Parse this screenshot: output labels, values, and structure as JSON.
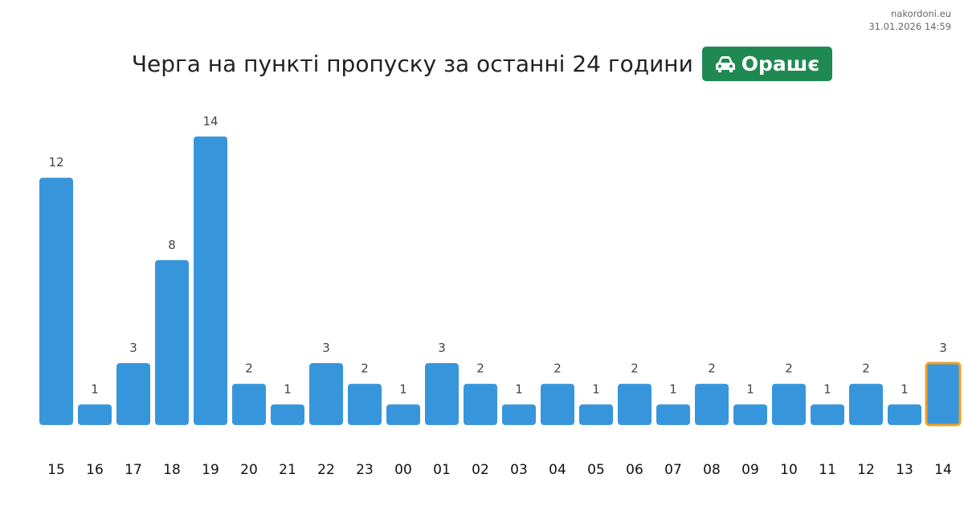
{
  "header": {
    "site": "nakordoni.eu",
    "timestamp": "31.01.2026 14:59"
  },
  "title": {
    "text": "Черга на пункті пропуску за останні 24 години",
    "badge_label": "Орашє",
    "badge_icon": "car-icon",
    "badge_color": "#1e8a52"
  },
  "colors": {
    "bar": "#3796db",
    "highlight_border": "#f0a020"
  },
  "chart_data": {
    "type": "bar",
    "title": "Черга на пункті пропуску за останні 24 години",
    "categories": [
      "15",
      "16",
      "17",
      "18",
      "19",
      "20",
      "21",
      "22",
      "23",
      "00",
      "01",
      "02",
      "03",
      "04",
      "05",
      "06",
      "07",
      "08",
      "09",
      "10",
      "11",
      "12",
      "13",
      "14"
    ],
    "values": [
      12,
      1,
      3,
      8,
      14,
      2,
      1,
      3,
      2,
      1,
      3,
      2,
      1,
      2,
      1,
      2,
      1,
      2,
      1,
      2,
      1,
      2,
      1,
      3
    ],
    "highlighted_category": "14",
    "ylim": [
      0,
      14
    ],
    "grid": false,
    "data_labels": true
  }
}
